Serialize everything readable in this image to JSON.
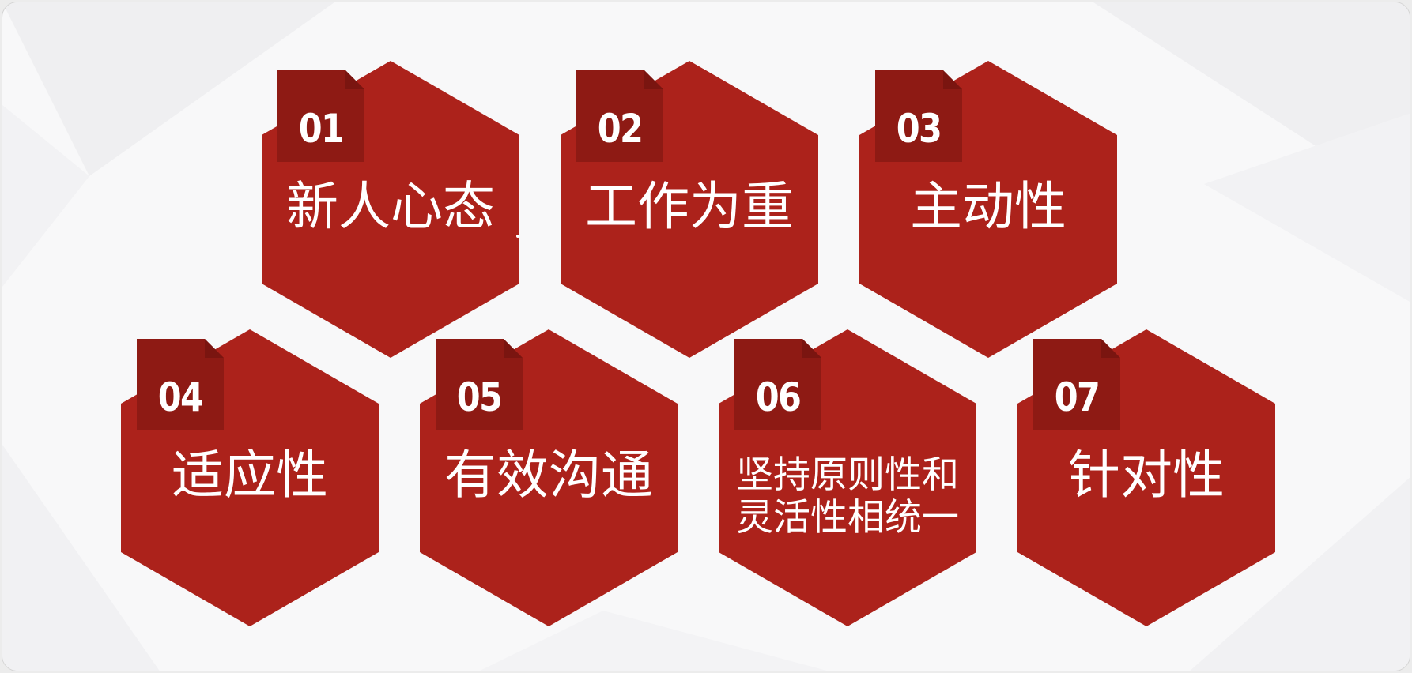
{
  "slide": {
    "colors": {
      "hexagon": "#ac221b",
      "tab": "#8e1a14",
      "tab_fold": "#7a1510",
      "text": "#ffffff",
      "background": "#f8f8f9"
    },
    "items": [
      {
        "number": "01",
        "label": "新人心态"
      },
      {
        "number": "02",
        "label": "工作为重"
      },
      {
        "number": "03",
        "label": "主动性"
      },
      {
        "number": "04",
        "label": "适应性"
      },
      {
        "number": "05",
        "label": "有效沟通"
      },
      {
        "number": "06",
        "label": "坚持原则性和灵活性相统一"
      },
      {
        "number": "07",
        "label": "针对性"
      }
    ]
  }
}
